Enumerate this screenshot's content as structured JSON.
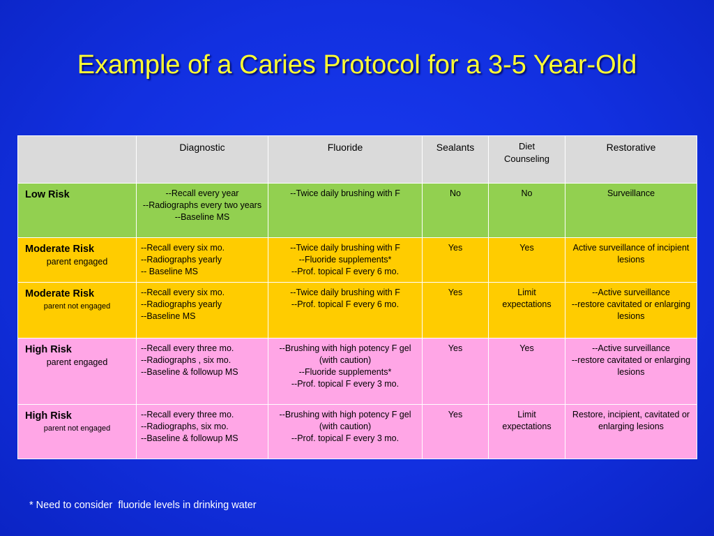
{
  "slide": {
    "title": "Example of a Caries Protocol for a 3-5 Year-Old",
    "footnote": "* Need to consider  fluoride levels in drinking water"
  },
  "table": {
    "headers": {
      "risk": "",
      "diagnostic": "Diagnostic",
      "fluoride": "Fluoride",
      "sealants": "Sealants",
      "diet_line1": "Diet",
      "diet_line2": "Counseling",
      "restorative": "Restorative"
    },
    "rows": [
      {
        "risk": "Low Risk",
        "sub": "",
        "color": "#92d050",
        "diagnostic": [
          "--Recall every year",
          "--Radiographs every two years",
          "--Baseline MS"
        ],
        "fluoride": [
          "--Twice daily brushing with F"
        ],
        "sealants": "No",
        "diet": [
          "No"
        ],
        "restorative": [
          "Surveillance"
        ]
      },
      {
        "risk": "Moderate Risk",
        "sub": "parent engaged",
        "color": "#ffcc00",
        "diagnostic": [
          "--Recall every six mo.",
          "--Radiographs yearly",
          "-- Baseline MS"
        ],
        "fluoride": [
          "--Twice daily brushing with F",
          "--Fluoride supplements*",
          "--Prof. topical F every 6 mo."
        ],
        "sealants": "Yes",
        "diet": [
          "Yes"
        ],
        "restorative": [
          "Active surveillance of incipient lesions"
        ]
      },
      {
        "risk": "Moderate Risk",
        "sub": "parent not engaged",
        "color": "#ffcc00",
        "diagnostic": [
          "--Recall every six mo.",
          "--Radiographs yearly",
          "--Baseline MS"
        ],
        "fluoride": [
          "--Twice daily brushing with F",
          "--Prof. topical F every 6 mo."
        ],
        "sealants": "Yes",
        "diet": [
          "Limit",
          "expectations"
        ],
        "restorative": [
          "--Active surveillance",
          "--restore cavitated or enlarging lesions"
        ]
      },
      {
        "risk": "High Risk",
        "sub": "parent engaged",
        "color": "#ffa6e6",
        "diagnostic": [
          "--Recall every three mo.",
          "--Radiographs ,  six mo.",
          "--Baseline & followup MS"
        ],
        "fluoride": [
          "--Brushing with high potency F gel (with caution)",
          "--Fluoride supplements*",
          "--Prof. topical F every 3 mo."
        ],
        "sealants": "Yes",
        "diet": [
          "Yes"
        ],
        "restorative": [
          "--Active surveillance",
          "--restore cavitated or enlarging lesions"
        ]
      },
      {
        "risk": "High Risk",
        "sub": "parent not engaged",
        "color": "#ffa6e6",
        "diagnostic": [
          "--Recall every three mo.",
          "--Radiographs,  six mo.",
          "--Baseline & followup MS"
        ],
        "fluoride": [
          "--Brushing with high potency F gel (with caution)",
          "--Prof. topical F every 3 mo."
        ],
        "sealants": "Yes",
        "diet": [
          "Limit",
          "expectations"
        ],
        "restorative": [
          "Restore,  incipient, cavitated or enlarging lesions"
        ]
      }
    ]
  }
}
